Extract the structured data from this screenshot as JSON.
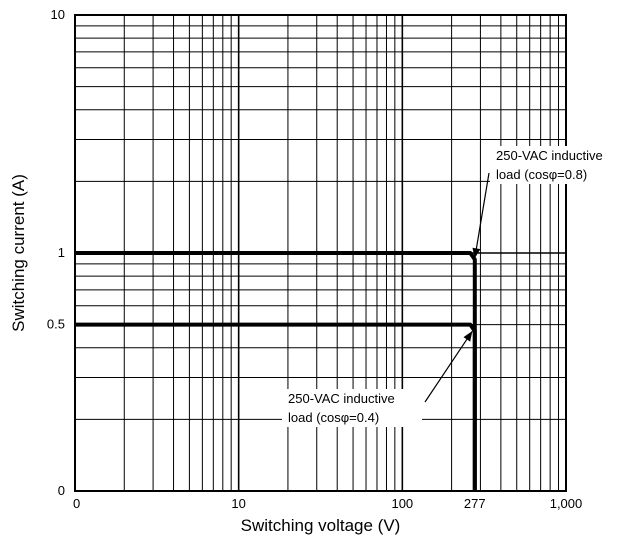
{
  "chart_data": {
    "type": "line",
    "title": "",
    "xlabel": "Switching voltage (V)",
    "ylabel": "Switching current (A)",
    "x_scale": "log",
    "y_scale": "log",
    "xlim": [
      1,
      1000
    ],
    "ylim": [
      0.1,
      10
    ],
    "grid": true,
    "x_ticks": [
      {
        "value": 1,
        "label": "0"
      },
      {
        "value": 10,
        "label": "10"
      },
      {
        "value": 100,
        "label": "100"
      },
      {
        "value": 277,
        "label": "277"
      },
      {
        "value": 1000,
        "label": "1,000"
      }
    ],
    "y_ticks": [
      {
        "value": 0.1,
        "label": "0"
      },
      {
        "value": 0.5,
        "label": "0.5"
      },
      {
        "value": 1,
        "label": "1"
      },
      {
        "value": 10,
        "label": "10"
      }
    ],
    "series": [
      {
        "points": [
          [
            1,
            1
          ],
          [
            260,
            1
          ],
          [
            277,
            0.94
          ],
          [
            277,
            0.1
          ]
        ]
      },
      {
        "points": [
          [
            1,
            0.5
          ],
          [
            260,
            0.5
          ],
          [
            277,
            0.47
          ],
          [
            277,
            0.1
          ]
        ]
      }
    ],
    "annotations": [
      {
        "lines": [
          "250-VAC inductive",
          "load (cosφ=0.8)"
        ],
        "target": [
          277,
          0.95
        ]
      },
      {
        "lines": [
          "250-VAC inductive",
          "load (cosφ=0.4)"
        ],
        "target": [
          268,
          0.47
        ]
      }
    ]
  }
}
